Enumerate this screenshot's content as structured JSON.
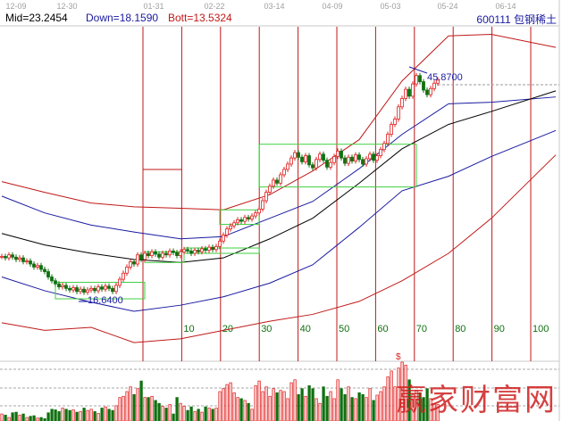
{
  "header": {
    "mid": "Mid=23.2454",
    "down": "Down=18.1590",
    "bott": "Bott=13.5324",
    "symbol": "600111 包钢稀土"
  },
  "watermark": "赢家财富网",
  "colors": {
    "up": "#e02020",
    "down": "#107010",
    "mid_line": "#000000",
    "band_inner": "#1a1aa0",
    "band_outer": "#c01818",
    "box": "#40d040",
    "cycle_line": "#c01818",
    "date_text": "#a0a0a0",
    "label_blue": "#1a1aa0"
  },
  "chart_data": {
    "type": "candlestick",
    "x_tick_labels": [
      "12-09",
      "12-30",
      "01-31",
      "02-22",
      "03-14",
      "04-09",
      "05-03",
      "05-24",
      "06-14"
    ],
    "cycle_labels": [
      "10",
      "20",
      "30",
      "40",
      "50",
      "60",
      "70",
      "80",
      "90",
      "100"
    ],
    "annotations": {
      "high_label": "45.8700",
      "low_label": "16.6400",
      "marker": "$"
    },
    "ylim": [
      11,
      55
    ],
    "closes": [
      22.2,
      22.0,
      22.4,
      22.1,
      21.8,
      22.0,
      21.5,
      21.6,
      21.2,
      20.8,
      21.0,
      20.5,
      20.2,
      19.5,
      19.0,
      18.6,
      18.2,
      18.4,
      18.0,
      17.8,
      18.1,
      17.6,
      17.9,
      17.5,
      17.8,
      18.0,
      17.7,
      18.2,
      17.9,
      18.3,
      18.0,
      17.6,
      18.4,
      19.2,
      20.0,
      20.8,
      21.5,
      21.2,
      22.4,
      21.8,
      22.6,
      22.3,
      22.8,
      22.5,
      22.1,
      22.6,
      22.4,
      22.9,
      22.7,
      22.3,
      22.8,
      23.1,
      22.9,
      22.6,
      23.0,
      22.8,
      23.2,
      23.0,
      23.4,
      23.1,
      23.5,
      24.2,
      25.0,
      25.8,
      26.2,
      26.6,
      27.0,
      26.8,
      27.3,
      27.1,
      27.5,
      27.9,
      28.4,
      29.5,
      30.6,
      31.4,
      32.2,
      31.8,
      32.9,
      33.6,
      34.3,
      35.1,
      35.8,
      35.2,
      34.6,
      35.4,
      34.2,
      33.8,
      34.9,
      35.6,
      34.8,
      33.9,
      34.5,
      35.3,
      36.0,
      35.1,
      34.4,
      35.2,
      34.7,
      35.5,
      34.9,
      34.3,
      35.0,
      35.6,
      34.8,
      35.4,
      36.2,
      37.0,
      38.2,
      39.5,
      40.2,
      41.8,
      42.9,
      44.1,
      43.2,
      44.8,
      45.9,
      45.1,
      44.0,
      43.4,
      44.2,
      44.9,
      45.3
    ],
    "volumes": [
      12,
      10,
      6,
      14,
      15,
      10,
      12,
      6,
      8,
      9,
      5,
      6,
      4,
      14,
      20,
      19,
      16,
      22,
      20,
      18,
      19,
      15,
      16,
      22,
      18,
      20,
      16,
      13,
      22,
      24,
      20,
      18,
      26,
      40,
      42,
      50,
      58,
      45,
      55,
      68,
      40,
      40,
      42,
      35,
      30,
      25,
      22,
      28,
      12,
      40,
      30,
      25,
      18,
      24,
      16,
      20,
      15,
      24,
      22,
      20,
      22,
      50,
      55,
      62,
      65,
      48,
      40,
      38,
      35,
      30,
      20,
      60,
      68,
      50,
      58,
      42,
      55,
      48,
      52,
      50,
      38,
      65,
      70,
      45,
      55,
      42,
      60,
      55,
      38,
      30,
      58,
      42,
      50,
      38,
      70,
      55,
      45,
      58,
      40,
      38,
      48,
      45,
      40,
      55,
      35,
      44,
      50,
      58,
      75,
      85,
      58,
      90,
      100,
      95,
      70,
      45,
      52,
      48,
      40,
      55,
      38,
      30,
      28
    ],
    "bands": {
      "index": [
        0,
        12,
        25,
        37,
        50,
        62,
        75,
        87,
        100,
        112,
        125,
        137,
        155
      ],
      "upper_outer": [
        32.0,
        30.6,
        29.2,
        28.7,
        28.5,
        28.3,
        30.3,
        33.4,
        37.5,
        45.2,
        51.1,
        51.3,
        49.6
      ],
      "upper_inner": [
        30.1,
        27.9,
        26.3,
        25.4,
        24.5,
        24.8,
        27.2,
        29.4,
        33.7,
        38.2,
        42.2,
        42.4,
        43.1
      ],
      "middle": [
        25.2,
        23.7,
        22.6,
        21.8,
        21.4,
        22.0,
        24.5,
        27.2,
        31.8,
        36.3,
        39.5,
        41.2,
        43.9
      ],
      "lower_inner": [
        19.5,
        17.7,
        16.2,
        15.0,
        15.8,
        16.9,
        18.7,
        21.1,
        26.0,
        30.8,
        32.7,
        35.3,
        38.7
      ],
      "lower_outer": [
        13.5,
        12.5,
        12.9,
        10.9,
        11.4,
        12.5,
        13.7,
        14.6,
        16.3,
        19.0,
        22.6,
        27.2,
        35.5
      ]
    },
    "boxes": [
      {
        "from": 15,
        "to": 40,
        "low": 16.64,
        "high": 18.8
      },
      {
        "from": 40,
        "to": 51,
        "low": 21.4,
        "high": 22.8
      },
      {
        "from": 51,
        "to": 72,
        "low": 22.6,
        "high": 23.3
      },
      {
        "from": 61,
        "to": 72,
        "low": 26.4,
        "high": 28.3
      },
      {
        "from": 72,
        "to": 116,
        "low": 31.3,
        "high": 36.9
      }
    ]
  }
}
